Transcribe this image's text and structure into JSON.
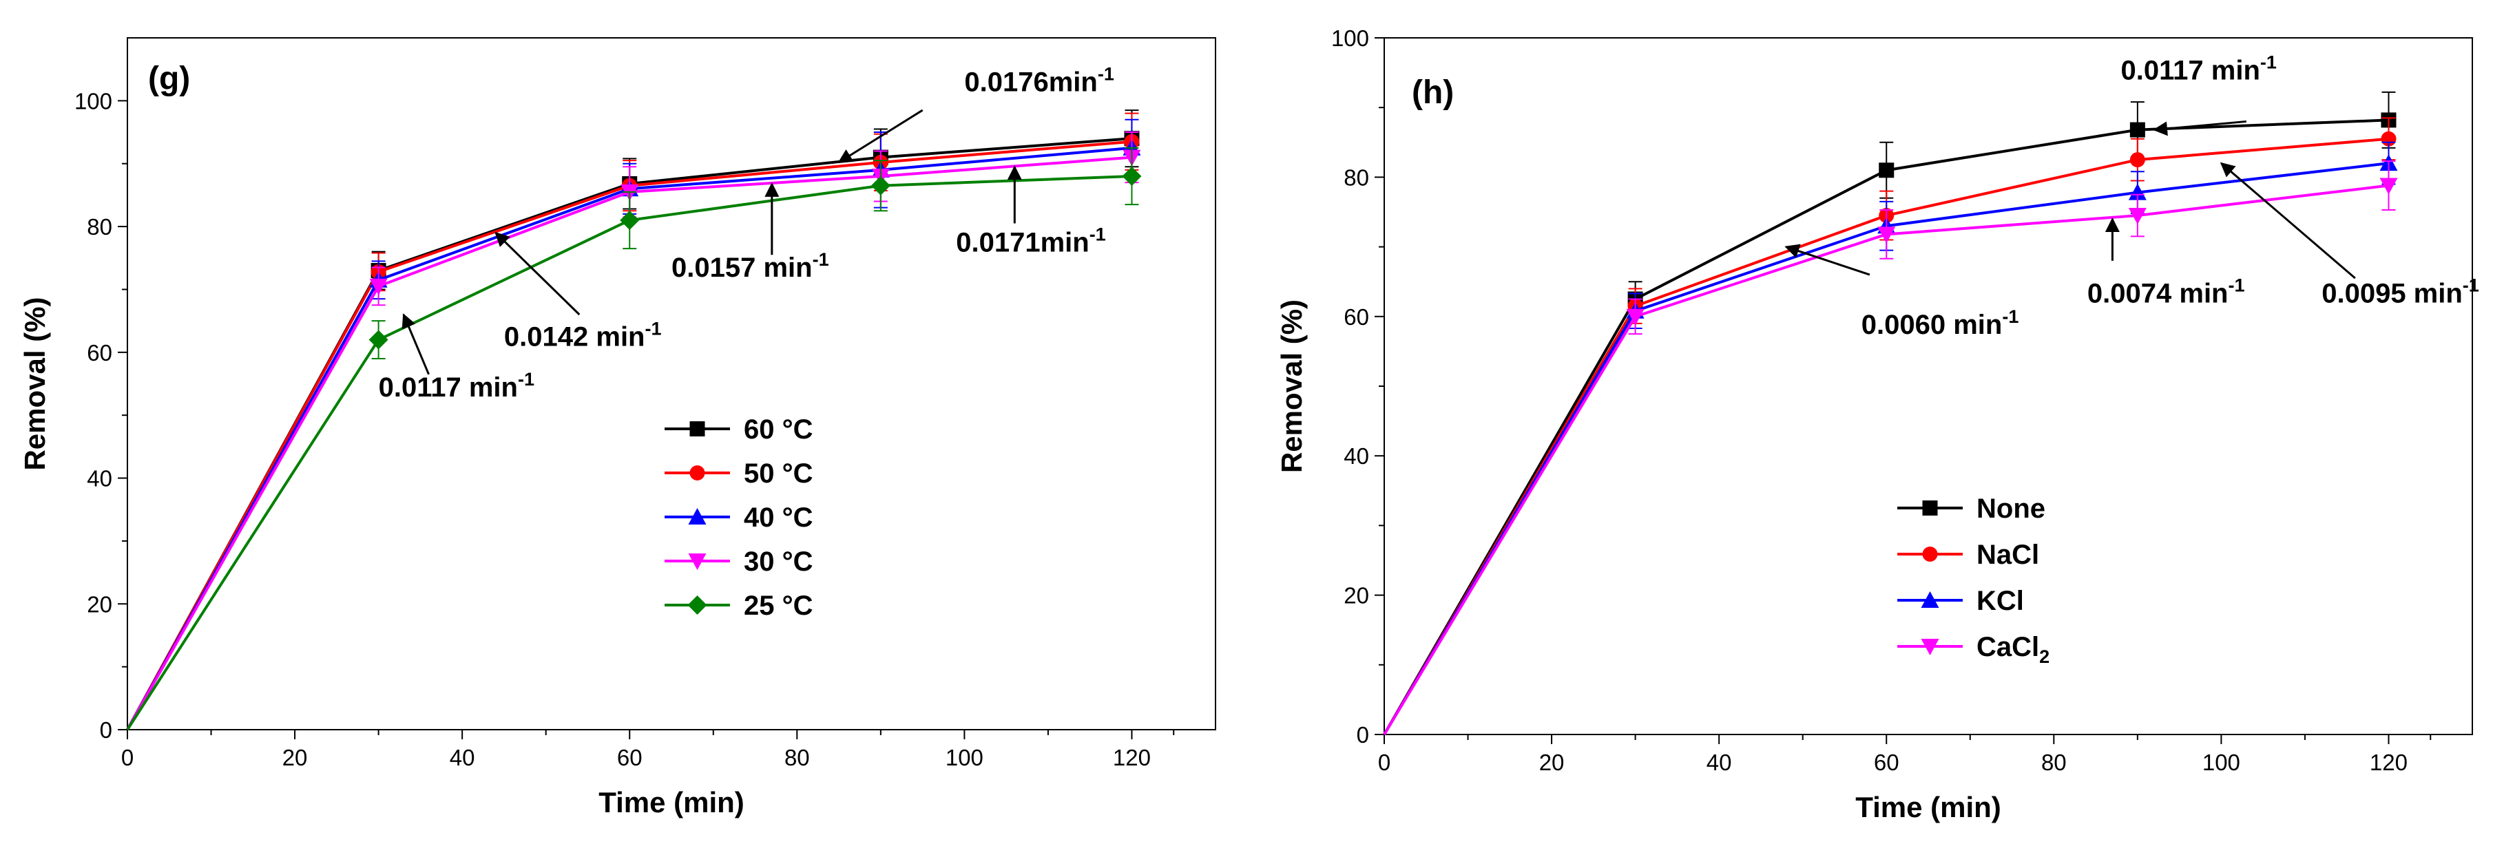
{
  "chart_data": [
    {
      "panel": "(g)",
      "type": "line",
      "xlabel": "Time (min)",
      "ylabel": "Removal (%)",
      "xlim": [
        0,
        130
      ],
      "ylim": [
        0,
        110
      ],
      "xticks": [
        0,
        20,
        40,
        60,
        80,
        100,
        120
      ],
      "yticks": [
        0,
        20,
        40,
        60,
        80,
        100
      ],
      "x": [
        0,
        30,
        60,
        90,
        120
      ],
      "series": [
        {
          "name": "60 °C",
          "color": "#000000",
          "marker": "square",
          "values": [
            0,
            73.0,
            86.8,
            91.0,
            94.0
          ],
          "errors": [
            0,
            3.0,
            4.0,
            4.5,
            4.5
          ]
        },
        {
          "name": "50 °C",
          "color": "#ff0000",
          "marker": "circle",
          "values": [
            0,
            72.8,
            86.5,
            90.2,
            93.5
          ],
          "errors": [
            0,
            3.0,
            4.0,
            4.5,
            4.5
          ]
        },
        {
          "name": "40 °C",
          "color": "#0000ff",
          "marker": "triangle-up",
          "values": [
            0,
            71.5,
            86.0,
            89.0,
            92.5
          ],
          "errors": [
            0,
            3.0,
            4.0,
            6.0,
            4.5
          ]
        },
        {
          "name": "30 °C",
          "color": "#ff00ff",
          "marker": "triangle-down",
          "values": [
            0,
            70.5,
            85.5,
            88.0,
            91.0
          ],
          "errors": [
            0,
            3.0,
            4.0,
            4.0,
            4.0
          ]
        },
        {
          "name": "25 °C",
          "color": "#008000",
          "marker": "diamond",
          "values": [
            0,
            62.0,
            81.0,
            86.5,
            88.0
          ],
          "errors": [
            0,
            3.0,
            4.5,
            4.0,
            4.5
          ]
        }
      ],
      "annotations": [
        {
          "value": "0.0176min",
          "sup": "-1",
          "label_at": [
            100,
            101.5
          ],
          "arrow_from": [
            95,
            98.5
          ],
          "arrow_to": [
            85,
            90.2
          ]
        },
        {
          "value": "0.0157 min",
          "sup": "-1",
          "label_at": [
            65,
            72
          ],
          "arrow_from": [
            77,
            75.5
          ],
          "arrow_to": [
            77,
            86.8
          ]
        },
        {
          "value": "0.0171min",
          "sup": "-1",
          "label_at": [
            99,
            76
          ],
          "arrow_from": [
            106,
            80.5
          ],
          "arrow_to": [
            106,
            89.5
          ]
        },
        {
          "value": "0.0142 min",
          "sup": "-1",
          "label_at": [
            45,
            61
          ],
          "arrow_from": [
            54,
            66
          ],
          "arrow_to": [
            44,
            79
          ]
        },
        {
          "value": "0.0117 min",
          "sup": "-1",
          "label_at": [
            30,
            53
          ],
          "arrow_from": [
            36,
            56.5
          ],
          "arrow_to": [
            33,
            66
          ]
        }
      ],
      "legend": {
        "position": "lower-right"
      }
    },
    {
      "panel": "(h)",
      "type": "line",
      "xlabel": "Time (min)",
      "ylabel": "Removal (%)",
      "xlim": [
        0,
        130
      ],
      "ylim": [
        0,
        100
      ],
      "xticks": [
        0,
        20,
        40,
        60,
        80,
        100,
        120
      ],
      "yticks": [
        0,
        20,
        40,
        60,
        80,
        100
      ],
      "x": [
        0,
        30,
        60,
        90,
        120
      ],
      "series": [
        {
          "name": "None",
          "color": "#000000",
          "marker": "square",
          "values": [
            0,
            62.5,
            81.0,
            86.8,
            88.2
          ],
          "errors": [
            0,
            2.5,
            4.0,
            4.0,
            4.0
          ]
        },
        {
          "name": "NaCl",
          "color": "#ff0000",
          "marker": "circle",
          "values": [
            0,
            61.5,
            74.5,
            82.5,
            85.5
          ],
          "errors": [
            0,
            2.5,
            3.5,
            3.0,
            3.0
          ]
        },
        {
          "name": "KCl",
          "color": "#0000ff",
          "marker": "triangle-up",
          "values": [
            0,
            60.8,
            73.0,
            77.8,
            82.0
          ],
          "errors": [
            0,
            2.5,
            3.5,
            3.0,
            3.0
          ]
        },
        {
          "name": "CaCl",
          "sub": "2",
          "color": "#ff00ff",
          "marker": "triangle-down",
          "values": [
            0,
            60.0,
            71.8,
            74.5,
            78.8
          ],
          "errors": [
            0,
            2.5,
            3.5,
            3.0,
            3.5
          ]
        }
      ],
      "annotations": [
        {
          "value": "0.0117 min",
          "sup": "-1",
          "label_at": [
            88,
            94
          ],
          "arrow_from": [
            103,
            88
          ],
          "arrow_to": [
            92,
            86.8
          ]
        },
        {
          "value": "0.0060 min",
          "sup": "-1",
          "label_at": [
            57,
            57.5
          ],
          "arrow_from": [
            58,
            66
          ],
          "arrow_to": [
            48,
            70
          ]
        },
        {
          "value": "0.0074 min",
          "sup": "-1",
          "label_at": [
            84,
            62
          ],
          "arrow_from": [
            87,
            68
          ],
          "arrow_to": [
            87,
            74
          ]
        },
        {
          "value": "0.0095 min",
          "sup": "-1",
          "label_at": [
            112,
            62
          ],
          "arrow_from": [
            116,
            65.5
          ],
          "arrow_to": [
            100,
            82
          ]
        }
      ],
      "legend": {
        "position": "lower-right"
      }
    }
  ]
}
